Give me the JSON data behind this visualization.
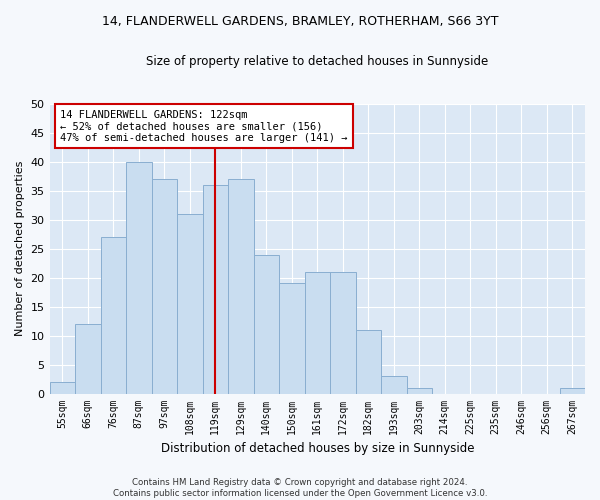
{
  "title": "14, FLANDERWELL GARDENS, BRAMLEY, ROTHERHAM, S66 3YT",
  "subtitle": "Size of property relative to detached houses in Sunnyside",
  "xlabel": "Distribution of detached houses by size in Sunnyside",
  "ylabel": "Number of detached properties",
  "bar_labels": [
    "55sqm",
    "66sqm",
    "76sqm",
    "87sqm",
    "97sqm",
    "108sqm",
    "119sqm",
    "129sqm",
    "140sqm",
    "150sqm",
    "161sqm",
    "172sqm",
    "182sqm",
    "193sqm",
    "203sqm",
    "214sqm",
    "225sqm",
    "235sqm",
    "246sqm",
    "256sqm",
    "267sqm"
  ],
  "bar_values": [
    2,
    12,
    27,
    40,
    37,
    31,
    36,
    37,
    24,
    19,
    21,
    21,
    11,
    3,
    1,
    0,
    0,
    0,
    0,
    0,
    1
  ],
  "bar_color": "#c9ddf0",
  "bar_edge_color": "#89aed0",
  "vline_index": 6,
  "vline_color": "#cc0000",
  "annotation_text": "14 FLANDERWELL GARDENS: 122sqm\n← 52% of detached houses are smaller (156)\n47% of semi-detached houses are larger (141) →",
  "annotation_box_color": "#ffffff",
  "annotation_box_edge": "#cc0000",
  "ylim": [
    0,
    50
  ],
  "yticks": [
    0,
    5,
    10,
    15,
    20,
    25,
    30,
    35,
    40,
    45,
    50
  ],
  "bg_color": "#dce8f5",
  "grid_color": "#ffffff",
  "fig_bg": "#f5f8fc",
  "footer": "Contains HM Land Registry data © Crown copyright and database right 2024.\nContains public sector information licensed under the Open Government Licence v3.0."
}
